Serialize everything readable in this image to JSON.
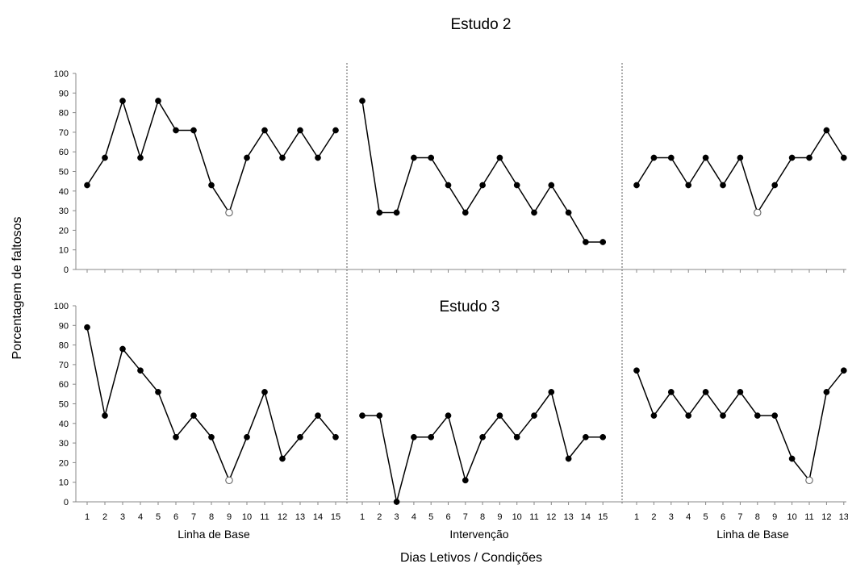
{
  "chart_data": {
    "type": "line",
    "ylabel": "Porcentagem de faltosos",
    "xlabel": "Dias Letivos / Condições",
    "ylim": [
      0,
      100
    ],
    "yticks": [
      0,
      10,
      20,
      30,
      40,
      50,
      60,
      70,
      80,
      90,
      100
    ],
    "conditions": [
      "Linha de Base",
      "Intervenção",
      "Linha de Base"
    ],
    "panels": [
      {
        "title": "Estudo 2",
        "phases": [
          {
            "condition": "Linha de Base",
            "x": [
              1,
              2,
              3,
              4,
              5,
              6,
              7,
              8,
              9,
              10,
              11,
              12,
              13,
              14,
              15
            ],
            "y": [
              43,
              57,
              86,
              57,
              86,
              71,
              71,
              43,
              29,
              57,
              71,
              57,
              71,
              57,
              71
            ],
            "open_points": [
              9
            ]
          },
          {
            "condition": "Intervenção",
            "x": [
              1,
              2,
              3,
              4,
              5,
              6,
              7,
              8,
              9,
              10,
              11,
              12,
              13,
              14,
              15
            ],
            "y": [
              86,
              29,
              29,
              57,
              57,
              43,
              29,
              43,
              57,
              43,
              29,
              43,
              29,
              14,
              14
            ],
            "open_points": []
          },
          {
            "condition": "Linha de Base",
            "x": [
              1,
              2,
              3,
              4,
              5,
              6,
              7,
              8,
              9,
              10,
              11,
              12,
              13
            ],
            "y": [
              43,
              57,
              57,
              43,
              57,
              43,
              57,
              29,
              43,
              57,
              57,
              71,
              57
            ],
            "open_points": [
              8
            ]
          }
        ]
      },
      {
        "title": "Estudo 3",
        "phases": [
          {
            "condition": "Linha de Base",
            "x": [
              1,
              2,
              3,
              4,
              5,
              6,
              7,
              8,
              9,
              10,
              11,
              12,
              13,
              14,
              15
            ],
            "y": [
              89,
              44,
              78,
              67,
              56,
              33,
              44,
              33,
              11,
              33,
              56,
              22,
              33,
              44,
              33
            ],
            "open_points": [
              9
            ]
          },
          {
            "condition": "Intervenção",
            "x": [
              1,
              2,
              3,
              4,
              5,
              6,
              7,
              8,
              9,
              10,
              11,
              12,
              13,
              14,
              15
            ],
            "y": [
              44,
              44,
              0,
              33,
              33,
              44,
              11,
              33,
              44,
              33,
              44,
              56,
              22,
              33,
              33
            ],
            "open_points": []
          },
          {
            "condition": "Linha de Base",
            "x": [
              1,
              2,
              3,
              4,
              5,
              6,
              7,
              8,
              9,
              10,
              11,
              12,
              13
            ],
            "y": [
              67,
              44,
              56,
              44,
              56,
              44,
              56,
              44,
              44,
              22,
              11,
              56,
              67
            ],
            "open_points": [
              11
            ]
          }
        ]
      }
    ],
    "grid": false,
    "phase_separators": "dashed-vertical"
  }
}
